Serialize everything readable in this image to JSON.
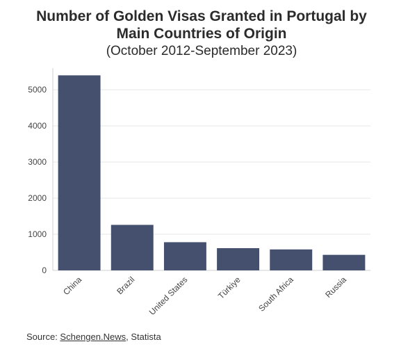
{
  "chart_data": {
    "type": "bar",
    "title_lines": [
      "Number of Golden Visas Granted in Portugal by",
      "Main Countries of Origin"
    ],
    "subtitle": "(October 2012-September 2023)",
    "categories": [
      "China",
      "Brazil",
      "United States",
      "Türkiye",
      "South Africa",
      "Russia"
    ],
    "values": [
      5400,
      1260,
      780,
      615,
      580,
      430
    ],
    "ylim": [
      0,
      5600
    ],
    "yticks": [
      0,
      1000,
      2000,
      3000,
      4000,
      5000
    ],
    "xlabel": "",
    "ylabel": "",
    "grid": true,
    "legend": "none"
  },
  "colors": {
    "bar": "#454f6e",
    "grid": "#e6e6e6"
  },
  "source": {
    "prefix": "Source: ",
    "link_text": "Schengen.News",
    "suffix": ", Statista"
  }
}
